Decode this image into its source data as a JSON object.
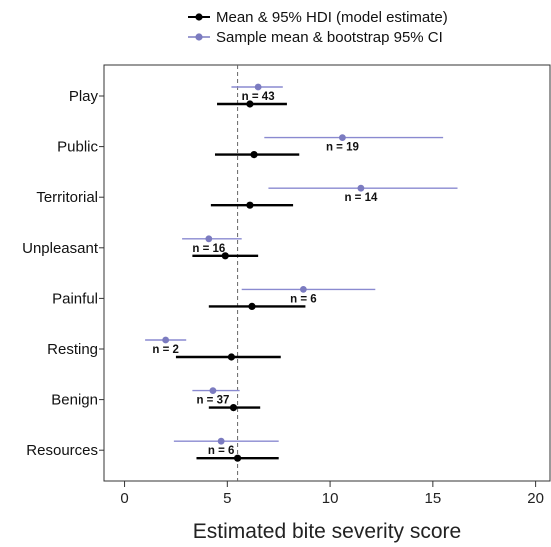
{
  "chart_data": {
    "type": "forest",
    "xlabel": "Estimated bite severity score",
    "xlim": [
      -1,
      20.7
    ],
    "xticks": [
      0,
      5,
      10,
      15,
      20
    ],
    "reference_line": 5.5,
    "grid": false,
    "legend_position": "top",
    "legend": [
      {
        "label": "Mean & 95% HDI (model estimate)",
        "color": "#000000"
      },
      {
        "label": "Sample mean & bootstrap 95% CI",
        "color": "#7b7bc0"
      }
    ],
    "categories": [
      {
        "name": "Play",
        "model": {
          "mean": 6.1,
          "low": 4.5,
          "high": 7.9
        },
        "sample": {
          "mean": 6.5,
          "low": 5.2,
          "high": 7.7
        },
        "n_label": "n = 43"
      },
      {
        "name": "Public",
        "model": {
          "mean": 6.3,
          "low": 4.4,
          "high": 8.5
        },
        "sample": {
          "mean": 10.6,
          "low": 6.8,
          "high": 15.5
        },
        "n_label": "n = 19"
      },
      {
        "name": "Territorial",
        "model": {
          "mean": 6.1,
          "low": 4.2,
          "high": 8.2
        },
        "sample": {
          "mean": 11.5,
          "low": 7.0,
          "high": 16.2
        },
        "n_label": "n = 14"
      },
      {
        "name": "Unpleasant",
        "model": {
          "mean": 4.9,
          "low": 3.3,
          "high": 6.5
        },
        "sample": {
          "mean": 4.1,
          "low": 2.8,
          "high": 5.7
        },
        "n_label": "n = 16"
      },
      {
        "name": "Painful",
        "model": {
          "mean": 6.2,
          "low": 4.1,
          "high": 8.8
        },
        "sample": {
          "mean": 8.7,
          "low": 5.7,
          "high": 12.2
        },
        "n_label": "n = 6"
      },
      {
        "name": "Resting",
        "model": {
          "mean": 5.2,
          "low": 2.5,
          "high": 7.6
        },
        "sample": {
          "mean": 2.0,
          "low": 1.0,
          "high": 3.0
        },
        "n_label": "n = 2"
      },
      {
        "name": "Benign",
        "model": {
          "mean": 5.3,
          "low": 4.1,
          "high": 6.6
        },
        "sample": {
          "mean": 4.3,
          "low": 3.3,
          "high": 5.6
        },
        "n_label": "n = 37"
      },
      {
        "name": "Resources",
        "model": {
          "mean": 5.5,
          "low": 3.5,
          "high": 7.5
        },
        "sample": {
          "mean": 4.7,
          "low": 2.4,
          "high": 7.5
        },
        "n_label": "n = 6"
      }
    ]
  }
}
